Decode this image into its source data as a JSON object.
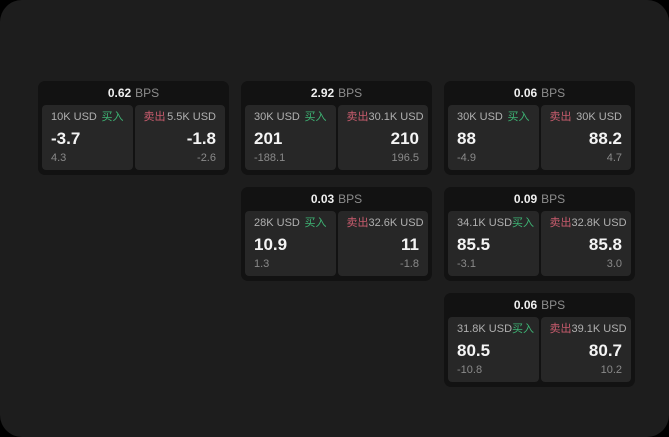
{
  "labels": {
    "bps_unit": "BPS",
    "buy": "买入",
    "sell": "卖出"
  },
  "colors": {
    "page_background": "#1d1d1d",
    "card_background": "#121212",
    "panel_background": "#272727",
    "buy_accent": "#3eb575",
    "sell_accent": "#c95c6e"
  },
  "cards": [
    {
      "bps": "0.62",
      "buy": {
        "amount": "10K USD",
        "price": "-3.7",
        "change": "4.3"
      },
      "sell": {
        "amount": "5.5K USD",
        "price": "-1.8",
        "change": "-2.6"
      }
    },
    {
      "bps": "2.92",
      "buy": {
        "amount": "30K USD",
        "price": "201",
        "change": "-188.1"
      },
      "sell": {
        "amount": "30.1K USD",
        "price": "210",
        "change": "196.5"
      }
    },
    {
      "bps": "0.06",
      "buy": {
        "amount": "30K USD",
        "price": "88",
        "change": "-4.9"
      },
      "sell": {
        "amount": "30K USD",
        "price": "88.2",
        "change": "4.7"
      }
    },
    {
      "bps": "0.03",
      "buy": {
        "amount": "28K USD",
        "price": "10.9",
        "change": "1.3"
      },
      "sell": {
        "amount": "32.6K USD",
        "price": "11",
        "change": "-1.8"
      }
    },
    {
      "bps": "0.09",
      "buy": {
        "amount": "34.1K USD",
        "price": "85.5",
        "change": "-3.1"
      },
      "sell": {
        "amount": "32.8K USD",
        "price": "85.8",
        "change": "3.0"
      }
    },
    {
      "bps": "0.06",
      "buy": {
        "amount": "31.8K USD",
        "price": "80.5",
        "change": "-10.8"
      },
      "sell": {
        "amount": "39.1K USD",
        "price": "80.7",
        "change": "10.2"
      }
    }
  ]
}
